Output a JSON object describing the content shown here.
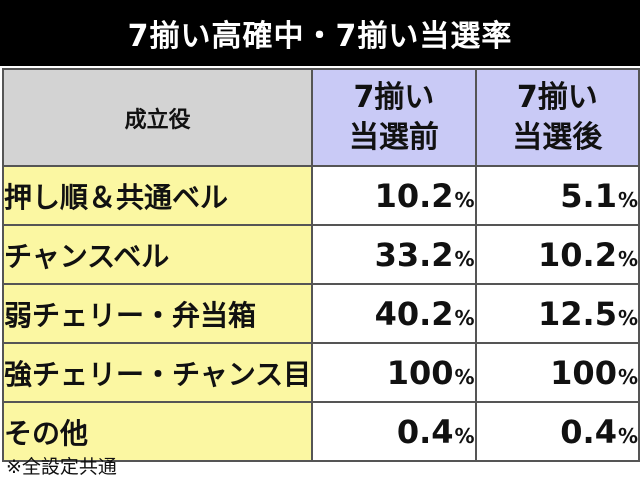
{
  "title": "7揃い高確中・7揃い当選率",
  "table": {
    "corner_label": "成立役",
    "columns": [
      {
        "line1": "7揃い",
        "line2": "当選前"
      },
      {
        "line1": "7揃い",
        "line2": "当選後"
      }
    ],
    "rows": [
      {
        "label": "押し順＆共通ベル",
        "before": "10.2",
        "after": "5.1"
      },
      {
        "label": "チャンスベル",
        "before": "33.2",
        "after": "10.2"
      },
      {
        "label": "弱チェリー・弁当箱",
        "before": "40.2",
        "after": "12.5"
      },
      {
        "label": "強チェリー・チャンス目",
        "before": "100",
        "after": "100"
      },
      {
        "label": "その他",
        "before": "0.4",
        "after": "0.4"
      }
    ],
    "unit": "%"
  },
  "note": "※全設定共通",
  "colors": {
    "title_bg": "#000000",
    "corner_bg": "#d3d3d3",
    "column_header_bg": "#c9caf6",
    "row_header_bg": "#fbf7a2",
    "cell_bg": "#ffffff"
  }
}
